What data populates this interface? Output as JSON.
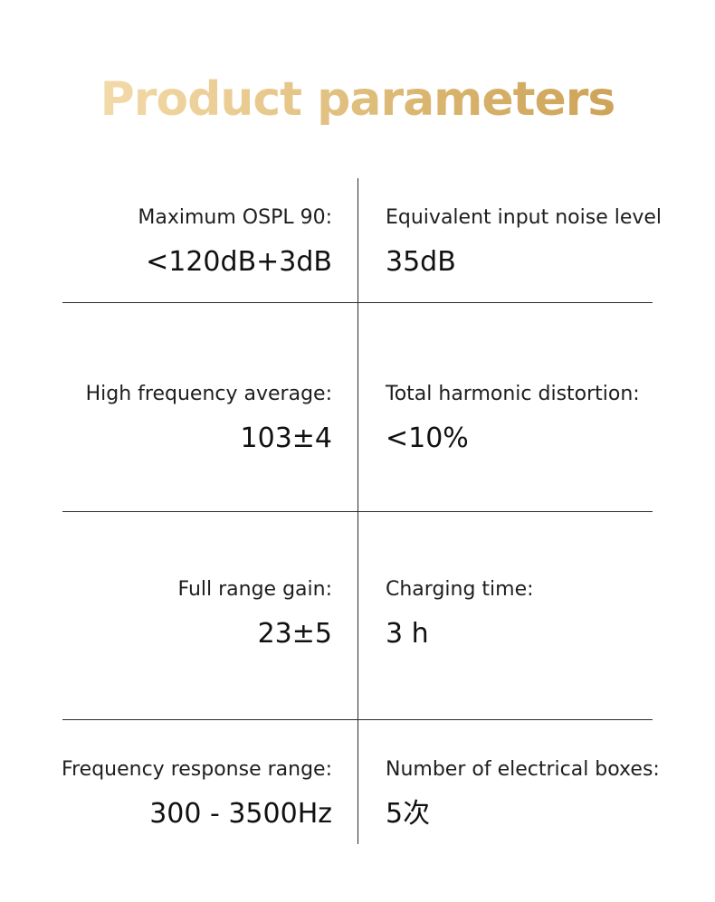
{
  "title": "Product parameters",
  "parameters": [
    {
      "label": "Maximum OSPL 90:",
      "value": "<120dB+3dB"
    },
    {
      "label": "Equivalent input noise level",
      "value": "35dB"
    },
    {
      "label": "High frequency average:",
      "value": "103±4"
    },
    {
      "label": "Total harmonic distortion:",
      "value": "<10%"
    },
    {
      "label": "Full range gain:",
      "value": "23±5"
    },
    {
      "label": "Charging time:",
      "value": "3 h"
    },
    {
      "label": "Frequency response range:",
      "value": "300 - 3500Hz"
    },
    {
      "label": "Number of electrical boxes:",
      "value": "5次"
    }
  ],
  "colors": {
    "title_gradient_start": "#f8e3b8",
    "title_gradient_end": "#c79a4b",
    "divider": "#2b2b2b"
  }
}
